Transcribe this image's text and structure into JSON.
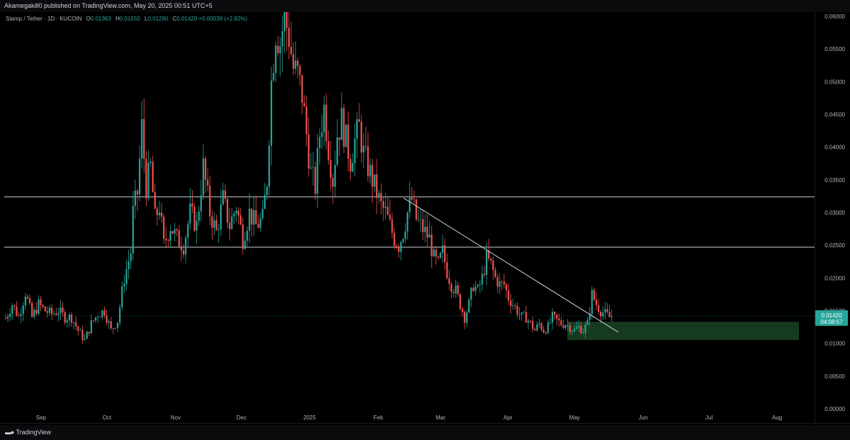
{
  "header": {
    "publisher_line": "Akamegakill0 published on TradingView.com, May 20, 2025 00:51 UTC+5"
  },
  "legend": {
    "symbol": "Stamp / Tether · 1D · KUCOIN",
    "o_label": "O",
    "o_value": "0.01363",
    "h_label": "H",
    "h_value": "0.01550",
    "l_label": "L",
    "l_value": "0.01290",
    "c_label": "C",
    "c_value": "0.01420",
    "change": "+0.00039 (+2.82%)"
  },
  "price_tag": {
    "price": "0.01420",
    "countdown": "04:08:57"
  },
  "footer": {
    "brand": "TradingView"
  },
  "colors": {
    "up": "#26a69a",
    "down": "#ef5350",
    "zone": "#163a1f",
    "line": "#d1d4dc",
    "tag": "#26a69a"
  },
  "chart_data": {
    "type": "candlestick",
    "yticks": [
      0.06,
      0.055,
      0.05,
      0.045,
      0.04,
      0.035,
      0.03,
      0.025,
      0.02,
      0.015,
      0.01,
      0.005,
      0.0
    ],
    "yticks_labels": [
      "0.06000",
      "0.05500",
      "0.05000",
      "0.04500",
      "0.04000",
      "0.03500",
      "0.03000",
      "0.02500",
      "0.02000",
      "0.01500",
      "0.01000",
      "0.00500",
      "0.00000"
    ],
    "xticks_labels": [
      "Sep",
      "Oct",
      "Nov",
      "Dec",
      "2025",
      "Feb",
      "Mar",
      "Apr",
      "May",
      "Jun",
      "Jul",
      "Aug"
    ],
    "ylim": [
      0.0,
      0.0607
    ],
    "horizontal_lines": [
      0.0324,
      0.0247
    ],
    "trendline": {
      "from_price": 0.0322,
      "to_price": 0.0117
    },
    "demand_zone": {
      "top": 0.0133,
      "bottom": 0.0105
    },
    "last_price": 0.0142,
    "close_path": [
      [
        0,
        0.0138
      ],
      [
        3,
        0.016
      ],
      [
        6,
        0.0141
      ],
      [
        9,
        0.0178
      ],
      [
        12,
        0.014
      ],
      [
        15,
        0.016
      ],
      [
        18,
        0.015
      ],
      [
        21,
        0.0145
      ],
      [
        24,
        0.015
      ],
      [
        27,
        0.014
      ],
      [
        30,
        0.014
      ],
      [
        33,
        0.012
      ],
      [
        36,
        0.0105
      ],
      [
        39,
        0.013
      ],
      [
        42,
        0.0145
      ],
      [
        45,
        0.015
      ],
      [
        48,
        0.012
      ],
      [
        51,
        0.0135
      ],
      [
        54,
        0.02
      ],
      [
        57,
        0.024
      ],
      [
        58,
        0.03
      ],
      [
        60,
        0.033
      ],
      [
        62,
        0.043
      ],
      [
        64,
        0.034
      ],
      [
        66,
        0.037
      ],
      [
        68,
        0.029
      ],
      [
        70,
        0.031
      ],
      [
        72,
        0.025
      ],
      [
        75,
        0.028
      ],
      [
        78,
        0.026
      ],
      [
        81,
        0.025
      ],
      [
        84,
        0.03
      ],
      [
        87,
        0.028
      ],
      [
        90,
        0.037
      ],
      [
        93,
        0.03
      ],
      [
        96,
        0.027
      ],
      [
        99,
        0.032
      ],
      [
        102,
        0.028
      ],
      [
        105,
        0.031
      ],
      [
        108,
        0.026
      ],
      [
        111,
        0.03
      ],
      [
        114,
        0.028
      ],
      [
        117,
        0.029
      ],
      [
        119,
        0.035
      ],
      [
        121,
        0.05
      ],
      [
        123,
        0.058
      ],
      [
        125,
        0.056
      ],
      [
        127,
        0.06
      ],
      [
        129,
        0.057
      ],
      [
        131,
        0.052
      ],
      [
        133,
        0.051
      ],
      [
        135,
        0.048
      ],
      [
        137,
        0.042
      ],
      [
        139,
        0.036
      ],
      [
        141,
        0.034
      ],
      [
        143,
        0.042
      ],
      [
        145,
        0.046
      ],
      [
        147,
        0.04
      ],
      [
        149,
        0.035
      ],
      [
        151,
        0.042
      ],
      [
        153,
        0.044
      ],
      [
        155,
        0.041
      ],
      [
        157,
        0.038
      ],
      [
        159,
        0.041
      ],
      [
        161,
        0.043
      ],
      [
        163,
        0.039
      ],
      [
        165,
        0.037
      ],
      [
        167,
        0.035
      ],
      [
        169,
        0.033
      ],
      [
        171,
        0.031
      ],
      [
        173,
        0.03
      ],
      [
        175,
        0.028
      ],
      [
        177,
        0.026
      ],
      [
        179,
        0.025
      ],
      [
        181,
        0.027
      ],
      [
        183,
        0.03
      ],
      [
        185,
        0.032
      ],
      [
        187,
        0.029
      ],
      [
        189,
        0.028
      ],
      [
        191,
        0.027
      ],
      [
        193,
        0.026
      ],
      [
        195,
        0.023
      ],
      [
        197,
        0.022
      ],
      [
        199,
        0.024
      ],
      [
        201,
        0.021
      ],
      [
        203,
        0.019
      ],
      [
        205,
        0.018
      ],
      [
        207,
        0.016
      ],
      [
        209,
        0.014
      ],
      [
        211,
        0.016
      ],
      [
        213,
        0.019
      ],
      [
        215,
        0.018
      ],
      [
        217,
        0.02
      ],
      [
        219,
        0.023
      ],
      [
        221,
        0.022
      ],
      [
        223,
        0.02
      ],
      [
        225,
        0.019
      ],
      [
        227,
        0.019
      ],
      [
        229,
        0.017
      ],
      [
        231,
        0.016
      ],
      [
        233,
        0.015
      ],
      [
        235,
        0.014
      ],
      [
        237,
        0.014
      ],
      [
        239,
        0.013
      ],
      [
        241,
        0.012
      ],
      [
        243,
        0.013
      ],
      [
        245,
        0.012
      ],
      [
        247,
        0.0125
      ],
      [
        249,
        0.014
      ],
      [
        251,
        0.0135
      ],
      [
        253,
        0.013
      ],
      [
        255,
        0.013
      ],
      [
        257,
        0.0125
      ],
      [
        259,
        0.012
      ],
      [
        261,
        0.0125
      ],
      [
        263,
        0.012
      ],
      [
        265,
        0.013
      ],
      [
        267,
        0.0175
      ],
      [
        269,
        0.016
      ],
      [
        271,
        0.015
      ],
      [
        273,
        0.0145
      ],
      [
        275,
        0.014
      ],
      [
        276,
        0.0142
      ]
    ]
  }
}
